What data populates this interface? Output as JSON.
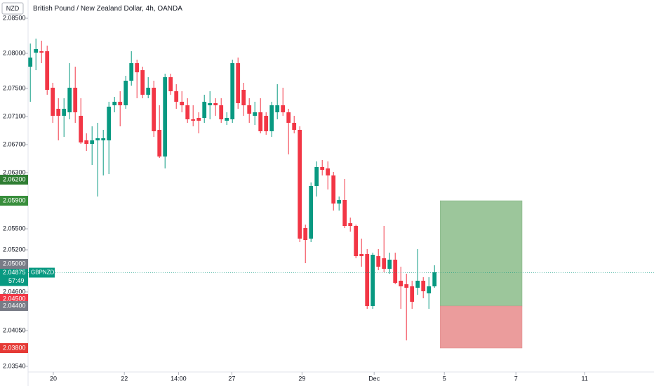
{
  "header": {
    "currency": "NZD"
  },
  "chart_data": {
    "type": "candlestick",
    "title": "British Pound / New Zealand Dollar, 4h, OANDA",
    "up_color": "#089981",
    "down_color": "#f23645",
    "open": [
      2.0781,
      2.0801,
      2.0803,
      2.0803,
      2.0751,
      2.0721,
      2.0711,
      2.0716,
      2.0751,
      2.0711,
      2.0676,
      2.0671,
      2.0676,
      2.0676,
      2.0676,
      2.0726,
      2.0731,
      2.0726,
      2.0761,
      2.0786,
      2.0776,
      2.0741,
      2.0751,
      2.0691,
      2.0653,
      2.0766,
      2.0746,
      2.0731,
      2.0726,
      2.0706,
      2.0708,
      2.0708,
      2.0726,
      2.0729,
      2.0726,
      2.0704,
      2.0706,
      2.0786,
      2.0748,
      2.0726,
      2.0711,
      2.0716,
      2.0711,
      2.0689,
      2.0716,
      2.0726,
      2.0716,
      2.0701,
      2.0691,
      2.0551,
      2.0536,
      2.0611,
      2.0638,
      2.0636,
      2.0626,
      2.0586,
      2.0591,
      2.0558,
      2.0554,
      2.0514,
      2.0514,
      2.044,
      2.0511,
      2.0508,
      2.0493,
      2.0506,
      2.0476,
      2.0471,
      2.0468,
      2.0466,
      2.0476,
      2.0458,
      2.0468
    ],
    "high": [
      2.0814,
      2.0821,
      2.0818,
      2.0811,
      2.0758,
      2.0736,
      2.0736,
      2.0786,
      2.0781,
      2.0736,
      2.0686,
      2.0696,
      2.0701,
      2.0691,
      2.0731,
      2.0738,
      2.0746,
      2.0768,
      2.0803,
      2.0791,
      2.0781,
      2.0766,
      2.0761,
      2.0726,
      2.0771,
      2.0771,
      2.0756,
      2.0746,
      2.0736,
      2.0726,
      2.0716,
      2.0741,
      2.0746,
      2.0736,
      2.0736,
      2.0716,
      2.0791,
      2.0794,
      2.0758,
      2.0736,
      2.0731,
      2.0736,
      2.0716,
      2.0731,
      2.0756,
      2.0751,
      2.0721,
      2.0711,
      2.0696,
      2.0556,
      2.0616,
      2.0646,
      2.0648,
      2.0646,
      2.0631,
      2.0596,
      2.0621,
      2.0566,
      2.0556,
      2.0536,
      2.0521,
      2.0516,
      2.0521,
      2.0554,
      2.0516,
      2.0516,
      2.0496,
      2.0486,
      2.0476,
      2.0521,
      2.0481,
      2.0481,
      2.0498
    ],
    "low": [
      2.0731,
      2.0776,
      2.0786,
      2.0741,
      2.0701,
      2.0676,
      2.0681,
      2.0706,
      2.0701,
      2.0671,
      2.0661,
      2.0641,
      2.0596,
      2.0626,
      2.0628,
      2.0716,
      2.0696,
      2.0721,
      2.0754,
      2.0736,
      2.0736,
      2.0736,
      2.0681,
      2.0651,
      2.0636,
      2.0741,
      2.0721,
      2.0716,
      2.0701,
      2.0696,
      2.0686,
      2.0701,
      2.0706,
      2.0711,
      2.0701,
      2.0698,
      2.0701,
      2.0721,
      2.0711,
      2.0701,
      2.0698,
      2.0686,
      2.0684,
      2.0681,
      2.0706,
      2.0711,
      2.0656,
      2.0686,
      2.0531,
      2.0501,
      2.0531,
      2.0596,
      2.0626,
      2.0606,
      2.0576,
      2.0576,
      2.0551,
      2.0546,
      2.0508,
      2.0496,
      2.0436,
      2.0436,
      2.0491,
      2.0488,
      2.0486,
      2.0471,
      2.0436,
      2.0391,
      2.0436,
      2.0456,
      2.0451,
      2.0436,
      2.0466
    ],
    "close": [
      2.0794,
      2.0806,
      2.0801,
      2.0748,
      2.0711,
      2.0711,
      2.0721,
      2.0751,
      2.0716,
      2.0673,
      2.0671,
      2.0676,
      2.0679,
      2.0679,
      2.0724,
      2.0731,
      2.0726,
      2.0761,
      2.0786,
      2.0773,
      2.0741,
      2.0751,
      2.0689,
      2.0653,
      2.0766,
      2.0746,
      2.0731,
      2.0726,
      2.0706,
      2.0704,
      2.0704,
      2.0731,
      2.0729,
      2.0726,
      2.0706,
      2.0708,
      2.0786,
      2.0729,
      2.0726,
      2.0714,
      2.0716,
      2.0689,
      2.0689,
      2.0726,
      2.0726,
      2.0716,
      2.0701,
      2.0691,
      2.0536,
      2.0534,
      2.0611,
      2.0638,
      2.0634,
      2.0626,
      2.0586,
      2.0591,
      2.0554,
      2.0554,
      2.0511,
      2.0511,
      2.044,
      2.0513,
      2.0496,
      2.0493,
      2.0506,
      2.0473,
      2.0468,
      2.0466,
      2.0446,
      2.0476,
      2.0461,
      2.0468,
      2.0488
    ],
    "xlim": [
      -0.4,
      111.1
    ],
    "xticks": [
      {
        "value": 4.1,
        "label": "20"
      },
      {
        "value": 16.75,
        "label": "22"
      },
      {
        "value": 26.4,
        "label": "14:00"
      },
      {
        "value": 35.9,
        "label": "27"
      },
      {
        "value": 48.4,
        "label": "29"
      },
      {
        "value": 61.25,
        "label": "Dec"
      },
      {
        "value": 73.75,
        "label": "5"
      },
      {
        "value": 86.5,
        "label": "7"
      },
      {
        "value": 98.75,
        "label": "11"
      }
    ],
    "ylim": [
      2.0346,
      2.0876
    ],
    "yticks": [
      {
        "value": 2.085,
        "label": "2.08500"
      },
      {
        "value": 2.08,
        "label": "2.08000"
      },
      {
        "value": 2.075,
        "label": "2.07500"
      },
      {
        "value": 2.071,
        "label": "2.07100"
      },
      {
        "value": 2.067,
        "label": "2.06700"
      },
      {
        "value": 2.063,
        "label": "2.06300"
      },
      {
        "value": 2.055,
        "label": "2.05500"
      },
      {
        "value": 2.052,
        "label": "2.05200"
      },
      {
        "value": 2.046,
        "label": "2.04600"
      },
      {
        "value": 2.0405,
        "label": "2.04050"
      },
      {
        "value": 2.0354,
        "label": "2.03540"
      }
    ],
    "position": {
      "start": 73,
      "end": 87.6,
      "entry": 2.044,
      "target": 2.059,
      "stop": 2.038,
      "target_color": "#9cc69b",
      "stop_color": "#eb9c9c"
    },
    "last": {
      "value": 2.04875,
      "label": "2.04875",
      "symbol": "GBPNZD",
      "countdown": "57:49",
      "color": "#089981"
    },
    "price_tags": [
      {
        "value": 2.062,
        "label": "2.06200",
        "color": "#2e7d32"
      },
      {
        "value": 2.059,
        "label": "2.05900",
        "color": "#388e3c"
      },
      {
        "value": 2.05,
        "label": "2.05000",
        "color": "#787b86"
      },
      {
        "value": 2.045,
        "label": "2.04500",
        "color": "#f23645"
      },
      {
        "value": 2.044,
        "label": "2.04400",
        "color": "#787b86"
      },
      {
        "value": 2.038,
        "label": "2.03800",
        "color": "#e53935"
      }
    ]
  }
}
